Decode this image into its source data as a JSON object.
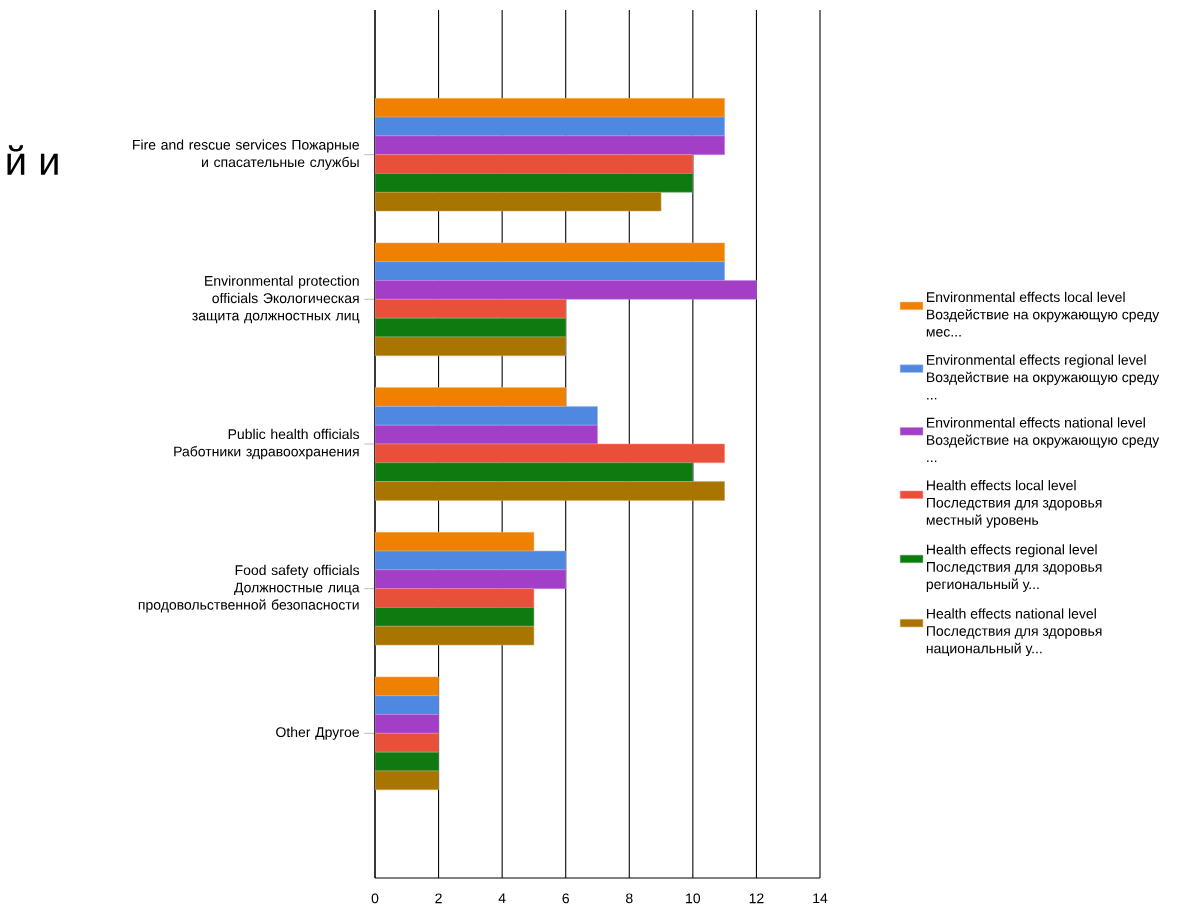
{
  "chart_data": {
    "type": "bar",
    "orientation": "horizontal",
    "categories": [
      "Fire and rescue services Пожарные и спасательные службы",
      "Environmental protection officials Экологическая защита должностных лиц",
      "Public health officials Работники здравоохранения",
      "Food safety officials Должностные лица продовольственной безопасности",
      "Other Другое"
    ],
    "series": [
      {
        "name": "Environmental effects local level Воздействие на окружающую среду мес...",
        "color": "#f08000",
        "values": [
          11,
          11,
          6,
          5,
          2
        ]
      },
      {
        "name": "Environmental effects regional level Воздействие на окружающую среду ...",
        "color": "#4f88e0",
        "values": [
          11,
          11,
          7,
          6,
          2
        ]
      },
      {
        "name": "Environmental effects national level Воздействие на окружающую среду ...",
        "color": "#a23fc6",
        "values": [
          11,
          12,
          7,
          6,
          2
        ]
      },
      {
        "name": "Health effects local level Последствия для здоровья местный уровень",
        "color": "#e9503a",
        "values": [
          10,
          6,
          11,
          5,
          2
        ]
      },
      {
        "name": "Health effects regional level Последствия для здоровья региональный у...",
        "color": "#0f7a10",
        "values": [
          10,
          6,
          10,
          5,
          2
        ]
      },
      {
        "name": "Health effects national level Последствия для здоровья национальный у...",
        "color": "#a87600",
        "values": [
          9,
          6,
          11,
          5,
          2
        ]
      }
    ],
    "xlim": [
      0,
      14
    ],
    "xticks": [
      0,
      2,
      4,
      6,
      8,
      10,
      12,
      14
    ],
    "grid": "x",
    "legend": "right",
    "annotations": [
      "й и"
    ]
  }
}
